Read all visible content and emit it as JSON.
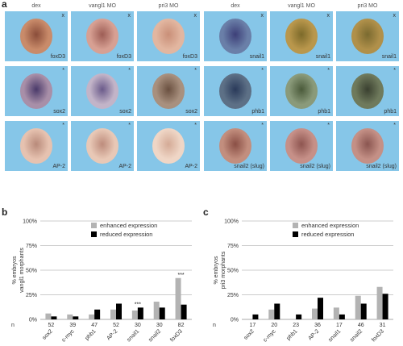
{
  "figure": {
    "panel_a": {
      "letter": "a",
      "columns": [
        "dex",
        "vangl1 MO",
        "pri3 MO",
        "dex",
        "vangl1 MO",
        "pri3 MO"
      ],
      "rows": [
        {
          "genes": [
            "foxD3",
            "foxD3",
            "foxD3",
            "snail1",
            "snail1",
            "snail1"
          ],
          "marks": [
            "x",
            "x",
            "x",
            "x",
            "x",
            "x"
          ],
          "bg": [
            "#86c6e8",
            "#86c6e8",
            "#86c6e8",
            "#86c6e8",
            "#86c6e8",
            "#86c6e8"
          ],
          "embryo": [
            "#c98b6a",
            "#d7a093",
            "#e2b6a0",
            "#6a7fa8",
            "#b9974c",
            "#b0904a"
          ],
          "spot": [
            "#8a4d3a",
            "#9d5d55",
            "#c98f78",
            "#3d3f78",
            "#7c6a2a",
            "#7a6a30"
          ]
        },
        {
          "genes": [
            "sox2",
            "sox2",
            "sox2",
            "phb1",
            "phb1",
            "phb1"
          ],
          "marks": [
            "*",
            "*",
            "*",
            "*",
            "*",
            "*"
          ],
          "bg": [
            "#86c6e8",
            "#86c6e8",
            "#86c6e8",
            "#86c6e8",
            "#86c6e8",
            "#86c6e8"
          ],
          "embryo": [
            "#a88fa8",
            "#c2b4c8",
            "#a8907e",
            "#5d7086",
            "#8a9a7a",
            "#6f7a5c"
          ],
          "spot": [
            "#4a3a6a",
            "#6a5a8a",
            "#6a5040",
            "#2a3a5a",
            "#4a5a3a",
            "#3a4030"
          ]
        },
        {
          "genes": [
            "AP-2",
            "AP-2",
            "AP-2",
            "snail2 (slug)",
            "snail2 (slug)",
            "snail2 (slug)"
          ],
          "marks": [
            "*",
            "*",
            "*",
            "*",
            "*",
            "*"
          ],
          "bg": [
            "#86c6e8",
            "#86c6e8",
            "#86c6e8",
            "#86c6e8",
            "#86c6e8",
            "#86c6e8"
          ],
          "embryo": [
            "#e6c2b0",
            "#e8c8b6",
            "#efd6c6",
            "#c28e7e",
            "#c69088",
            "#c49086"
          ],
          "spot": [
            "#b88a7a",
            "#bd8c7c",
            "#d4aa96",
            "#8a4f45",
            "#8e5550",
            "#8a5550"
          ]
        }
      ]
    },
    "panel_b": {
      "letter": "b",
      "chart_data": {
        "type": "bar",
        "ylabel_line1": "% embryos",
        "ylabel_line2": "vangl1 morphants",
        "ylim": [
          0,
          100
        ],
        "yticks": [
          "0%",
          "25%",
          "50%",
          "75%",
          "100%"
        ],
        "n_label": "n",
        "n_values": [
          "52",
          "39",
          "47",
          "52",
          "30",
          "30",
          "82"
        ],
        "categories": [
          "sox2",
          "c-myc",
          "phb1",
          "AP-2",
          "snail1",
          "snail2",
          "foxD3"
        ],
        "series": [
          {
            "name": "enhanced expression",
            "color": "#b3b3b3",
            "values": [
              6,
              5,
              5,
              10,
              9,
              18,
              42
            ]
          },
          {
            "name": "reduced expression",
            "color": "#000000",
            "values": [
              3,
              3,
              10,
              16,
              12,
              12,
              15
            ]
          }
        ],
        "annotations": [
          {
            "category": "snail1",
            "text": "***"
          },
          {
            "category": "foxD3",
            "text": "***"
          }
        ]
      }
    },
    "panel_c": {
      "letter": "c",
      "chart_data": {
        "type": "bar",
        "ylabel_line1": "% embryos",
        "ylabel_line2": "pri3 morphants",
        "ylim": [
          0,
          100
        ],
        "yticks": [
          "0%",
          "25%",
          "50%",
          "75%",
          "100%"
        ],
        "n_label": "n",
        "n_values": [
          "17",
          "20",
          "23",
          "36",
          "17",
          "46",
          "31"
        ],
        "categories": [
          "sox2",
          "c-myc",
          "phb1",
          "AP-2",
          "snail1",
          "snail2",
          "foxD3"
        ],
        "series": [
          {
            "name": "enhanced expression",
            "color": "#b3b3b3",
            "values": [
              0,
              10,
              0,
              11,
              12,
              24,
              33
            ]
          },
          {
            "name": "reduced expression",
            "color": "#000000",
            "values": [
              5,
              16,
              5,
              22,
              5,
              16,
              26
            ]
          }
        ],
        "annotations": []
      }
    }
  }
}
